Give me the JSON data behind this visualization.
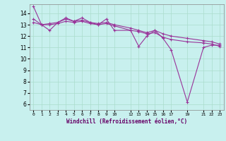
{
  "title": "",
  "xlabel": "Windchill (Refroidissement éolien,°C)",
  "background_color": "#c8f0ee",
  "grid_color": "#aaddcc",
  "line_color": "#993399",
  "ylim": [
    5.5,
    14.8
  ],
  "xlim": [
    -0.5,
    23.5
  ],
  "yticks": [
    6,
    7,
    8,
    9,
    10,
    11,
    12,
    13,
    14
  ],
  "xtick_positions": [
    0,
    1,
    2,
    3,
    4,
    5,
    6,
    7,
    8,
    9,
    10,
    12,
    13,
    14,
    15,
    16,
    17,
    19,
    21,
    22,
    23
  ],
  "xtick_labels": [
    "0",
    "1",
    "2",
    "3",
    "4",
    "5",
    "6",
    "7",
    "8",
    "9",
    "10",
    "12",
    "13",
    "14",
    "15",
    "16",
    "17",
    "19",
    "21",
    "22",
    "23"
  ],
  "line1_x": [
    0,
    1,
    2,
    3,
    4,
    5,
    6,
    7,
    8,
    9,
    10,
    12,
    13,
    14,
    15,
    16,
    17,
    19,
    21,
    22,
    23
  ],
  "line1_y": [
    14.6,
    13.0,
    12.5,
    13.2,
    13.6,
    13.3,
    13.6,
    13.2,
    13.0,
    13.5,
    12.5,
    12.5,
    11.1,
    12.0,
    12.5,
    11.8,
    10.8,
    6.2,
    11.0,
    11.2,
    11.2
  ],
  "line2_x": [
    0,
    1,
    2,
    3,
    4,
    5,
    6,
    7,
    8,
    9,
    10,
    12,
    13,
    14,
    15,
    16,
    17,
    19,
    21,
    22,
    23
  ],
  "line2_y": [
    13.5,
    13.0,
    13.1,
    13.2,
    13.5,
    13.3,
    13.4,
    13.2,
    13.1,
    13.2,
    13.0,
    12.7,
    12.5,
    12.3,
    12.5,
    12.2,
    12.0,
    11.8,
    11.6,
    11.5,
    11.3
  ],
  "line3_x": [
    0,
    1,
    2,
    3,
    4,
    5,
    6,
    7,
    8,
    9,
    10,
    12,
    13,
    14,
    15,
    16,
    17,
    19,
    21,
    22,
    23
  ],
  "line3_y": [
    13.2,
    13.0,
    13.0,
    13.1,
    13.3,
    13.2,
    13.3,
    13.1,
    13.0,
    13.1,
    12.9,
    12.5,
    12.4,
    12.2,
    12.3,
    11.9,
    11.7,
    11.5,
    11.4,
    11.3,
    11.1
  ]
}
